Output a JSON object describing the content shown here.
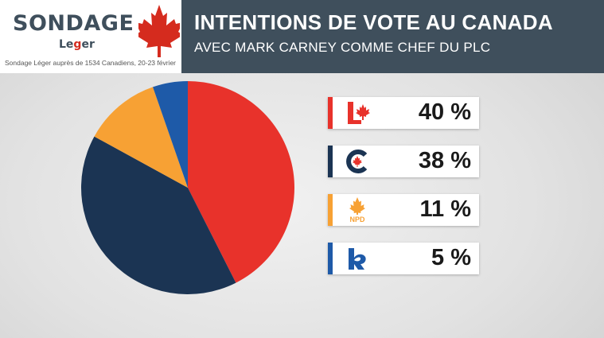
{
  "brand": {
    "title": "SONDAGE",
    "subtitle_prefix": "Le",
    "subtitle_mark": "g",
    "subtitle_suffix": "er",
    "source_note": "Sondage Léger auprès de 1534 Canadiens, 20-23 février"
  },
  "header": {
    "title": "INTENTIONS DE VOTE AU CANADA",
    "subtitle": "AVEC MARK CARNEY COMME CHEF DU PLC"
  },
  "colors": {
    "header_bg": "#3f4f5c",
    "liberal": "#e8322b",
    "conservative": "#1b3453",
    "ndp": "#f7a134",
    "bloc": "#1e5aa8"
  },
  "chart_data": {
    "type": "pie",
    "title": "",
    "series": [
      {
        "name": "PLC",
        "value": 40,
        "label": "40 %",
        "color": "#e8322b",
        "icon": "liberal-logo-icon"
      },
      {
        "name": "PCC",
        "value": 38,
        "label": "38 %",
        "color": "#1b3453",
        "icon": "conservative-logo-icon"
      },
      {
        "name": "NPD",
        "value": 11,
        "label": "11 %",
        "color": "#f7a134",
        "icon": "ndp-logo-icon"
      },
      {
        "name": "BQ",
        "value": 5,
        "label": "5 %",
        "color": "#1e5aa8",
        "icon": "bloc-logo-icon"
      }
    ],
    "ndp_logo_text": "NPD"
  }
}
